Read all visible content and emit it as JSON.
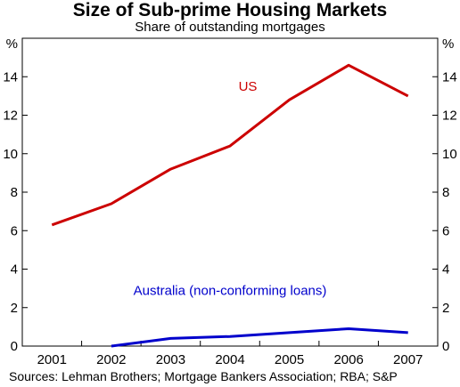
{
  "chart_data": {
    "type": "line",
    "title": "Size of Sub-prime Housing Markets",
    "subtitle": "Share of outstanding mortgages",
    "ylabel_left": "%",
    "ylabel_right": "%",
    "ylim": [
      0,
      16
    ],
    "yticks": [
      0,
      2,
      4,
      6,
      8,
      10,
      12,
      14
    ],
    "categories": [
      "2001",
      "2002",
      "2003",
      "2004",
      "2005",
      "2006",
      "2007"
    ],
    "grid": false,
    "series": [
      {
        "name": "US",
        "color": "#cc0000",
        "x": [
          2001,
          2002,
          2003,
          2004,
          2005,
          2006,
          2007
        ],
        "values": [
          6.3,
          7.4,
          9.2,
          10.4,
          12.8,
          14.6,
          13.0
        ]
      },
      {
        "name": "Australia (non-conforming loans)",
        "color": "#0000cc",
        "x": [
          2002,
          2003,
          2004,
          2005,
          2006,
          2007
        ],
        "values": [
          0.0,
          0.4,
          0.5,
          0.7,
          0.9,
          0.7
        ]
      }
    ],
    "source": "Sources: Lehman Brothers; Mortgage Bankers Association; RBA; S&P"
  }
}
